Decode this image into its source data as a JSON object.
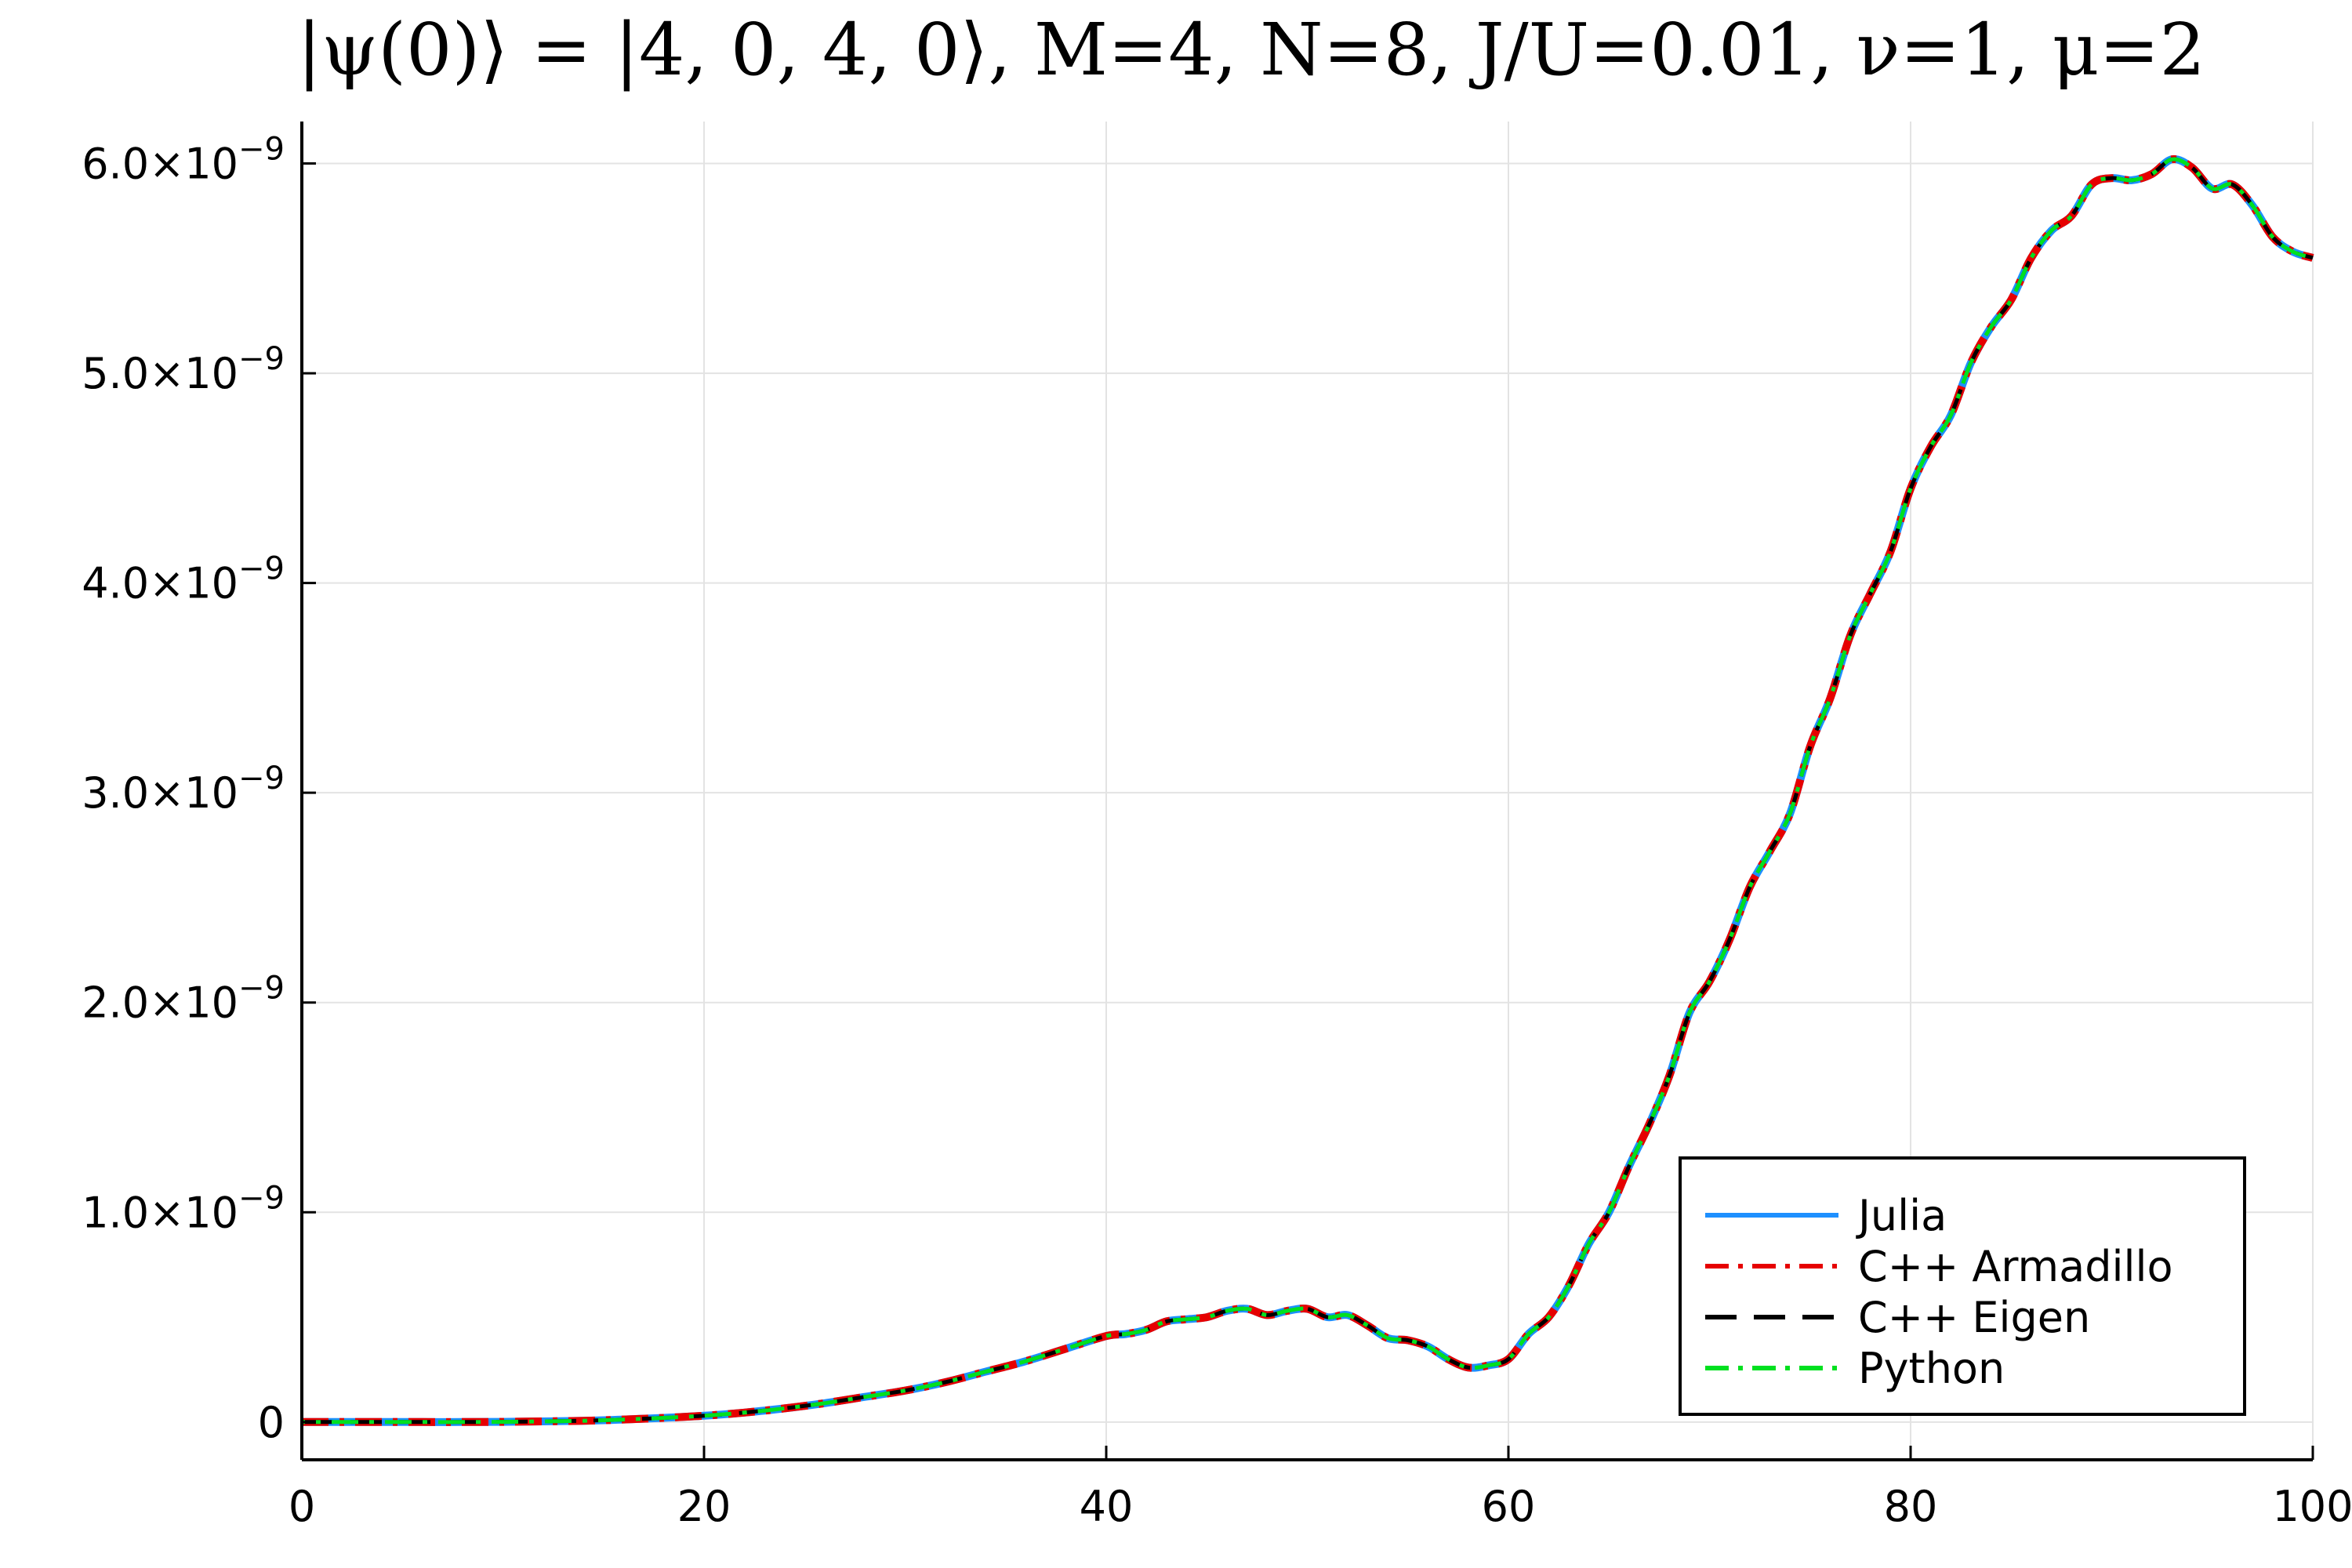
{
  "chart_data": {
    "type": "line",
    "title": "|ψ(0)⟩ = |4, 0, 4, 0⟩, M=4, N=8, J/U=0.01, ν=1, μ=2",
    "xlabel": "",
    "ylabel": "",
    "xlim": [
      0,
      100
    ],
    "ylim": [
      -1.8e-10,
      6.2e-09
    ],
    "x_ticks": [
      0,
      20,
      40,
      60,
      80,
      100
    ],
    "x_tick_labels": [
      "0",
      "20",
      "40",
      "60",
      "80",
      "100"
    ],
    "y_ticks": [
      0,
      1e-09,
      2e-09,
      3e-09,
      4e-09,
      5e-09,
      6e-09
    ],
    "y_tick_labels": [
      "0",
      "1.0×10−9",
      "2.0×10−9",
      "3.0×10−9",
      "4.0×10−9",
      "5.0×10−9",
      "6.0×10−9"
    ],
    "grid": true,
    "legend_position": "bottom-right",
    "x": [
      0,
      2,
      4,
      6,
      8,
      10,
      12,
      14,
      16,
      18,
      20,
      22,
      24,
      26,
      28,
      30,
      32,
      34,
      36,
      38,
      40,
      41,
      42,
      43,
      44,
      45,
      46,
      47,
      48,
      49,
      50,
      51,
      52,
      53,
      54,
      55,
      56,
      57,
      58,
      59,
      60,
      61,
      62,
      63,
      64,
      65,
      66,
      67,
      68,
      69,
      70,
      71,
      72,
      73,
      74,
      75,
      76,
      77,
      78,
      79,
      80,
      81,
      82,
      83,
      84,
      85,
      86,
      87,
      88,
      89,
      90,
      91,
      92,
      93,
      94,
      95,
      96,
      97,
      98,
      99,
      100
    ],
    "values": [
      0,
      0,
      0,
      0,
      0,
      1e-12,
      3e-12,
      6e-12,
      1.2e-11,
      2e-11,
      3e-11,
      4.5e-11,
      6.5e-11,
      9e-11,
      1.2e-10,
      1.5e-10,
      1.9e-10,
      2.4e-10,
      2.9e-10,
      3.5e-10,
      4.1e-10,
      4.2e-10,
      4.4e-10,
      4.8e-10,
      4.9e-10,
      5e-10,
      5.3e-10,
      5.4e-10,
      5.1e-10,
      5.3e-10,
      5.4e-10,
      5e-10,
      5.1e-10,
      4.6e-10,
      4e-10,
      3.9e-10,
      3.6e-10,
      3e-10,
      2.6e-10,
      2.7e-10,
      3e-10,
      4.2e-10,
      5e-10,
      6.5e-10,
      8.5e-10,
      1e-09,
      1.22e-09,
      1.42e-09,
      1.65e-09,
      1.95e-09,
      2.1e-09,
      2.3e-09,
      2.55e-09,
      2.72e-09,
      2.9e-09,
      3.22e-09,
      3.45e-09,
      3.75e-09,
      3.95e-09,
      4.15e-09,
      4.45e-09,
      4.65e-09,
      4.8e-09,
      5.05e-09,
      5.22e-09,
      5.35e-09,
      5.55e-09,
      5.68e-09,
      5.75e-09,
      5.9e-09,
      5.93e-09,
      5.92e-09,
      5.95e-09,
      6.02e-09,
      5.98e-09,
      5.88e-09,
      5.9e-09,
      5.8e-09,
      5.65e-09,
      5.58e-09,
      5.55e-09
    ],
    "series": [
      {
        "name": "Julia",
        "color": "#1e90ff",
        "dash": "solid"
      },
      {
        "name": "C++ Armadillo",
        "color": "#e60000",
        "dash": "dashdot"
      },
      {
        "name": "C++ Eigen",
        "color": "#000000",
        "dash": "dash"
      },
      {
        "name": "Python",
        "color": "#00e020",
        "dash": "dashdot"
      }
    ]
  }
}
